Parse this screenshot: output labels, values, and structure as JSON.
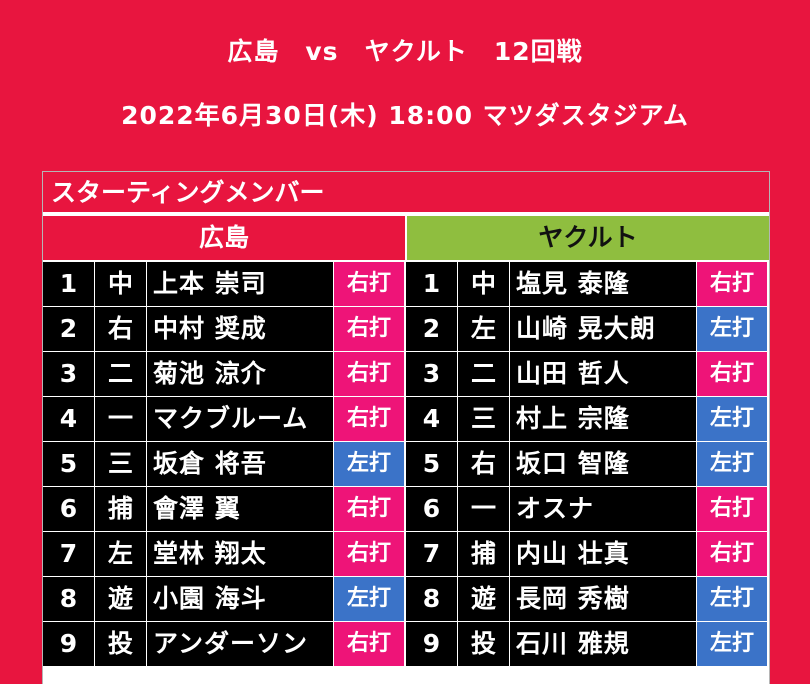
{
  "title": "広島　vs　ヤクルト　12回戦",
  "subtitle": "2022年6月30日(木)  18:00  マツダスタジアム",
  "section_label": "スターティングメンバー",
  "home": {
    "team": "広島",
    "players": [
      {
        "order": "1",
        "pos": "中",
        "name": "上本 崇司",
        "bat": "右打",
        "side": "R"
      },
      {
        "order": "2",
        "pos": "右",
        "name": "中村 奨成",
        "bat": "右打",
        "side": "R"
      },
      {
        "order": "3",
        "pos": "二",
        "name": "菊池 涼介",
        "bat": "右打",
        "side": "R"
      },
      {
        "order": "4",
        "pos": "一",
        "name": "マクブルーム",
        "bat": "右打",
        "side": "R"
      },
      {
        "order": "5",
        "pos": "三",
        "name": "坂倉 将吾",
        "bat": "左打",
        "side": "L"
      },
      {
        "order": "6",
        "pos": "捕",
        "name": "會澤 翼",
        "bat": "右打",
        "side": "R"
      },
      {
        "order": "7",
        "pos": "左",
        "name": "堂林 翔太",
        "bat": "右打",
        "side": "R"
      },
      {
        "order": "8",
        "pos": "遊",
        "name": "小園 海斗",
        "bat": "左打",
        "side": "L"
      },
      {
        "order": "9",
        "pos": "投",
        "name": "アンダーソン",
        "bat": "右打",
        "side": "R"
      }
    ]
  },
  "away": {
    "team": "ヤクルト",
    "players": [
      {
        "order": "1",
        "pos": "中",
        "name": "塩見 泰隆",
        "bat": "右打",
        "side": "R"
      },
      {
        "order": "2",
        "pos": "左",
        "name": "山崎 晃大朗",
        "bat": "左打",
        "side": "L"
      },
      {
        "order": "3",
        "pos": "二",
        "name": "山田 哲人",
        "bat": "右打",
        "side": "R"
      },
      {
        "order": "4",
        "pos": "三",
        "name": "村上 宗隆",
        "bat": "左打",
        "side": "L"
      },
      {
        "order": "5",
        "pos": "右",
        "name": "坂口 智隆",
        "bat": "左打",
        "side": "L"
      },
      {
        "order": "6",
        "pos": "一",
        "name": "オスナ",
        "bat": "右打",
        "side": "R"
      },
      {
        "order": "7",
        "pos": "捕",
        "name": "内山 壮真",
        "bat": "右打",
        "side": "R"
      },
      {
        "order": "8",
        "pos": "遊",
        "name": "長岡 秀樹",
        "bat": "左打",
        "side": "L"
      },
      {
        "order": "9",
        "pos": "投",
        "name": "石川 雅規",
        "bat": "左打",
        "side": "L"
      }
    ]
  },
  "colors": {
    "background": "#e8153f",
    "away_header": "#8fbe3f",
    "right_handed": "#ee1478",
    "left_handed": "#3b73c8"
  }
}
